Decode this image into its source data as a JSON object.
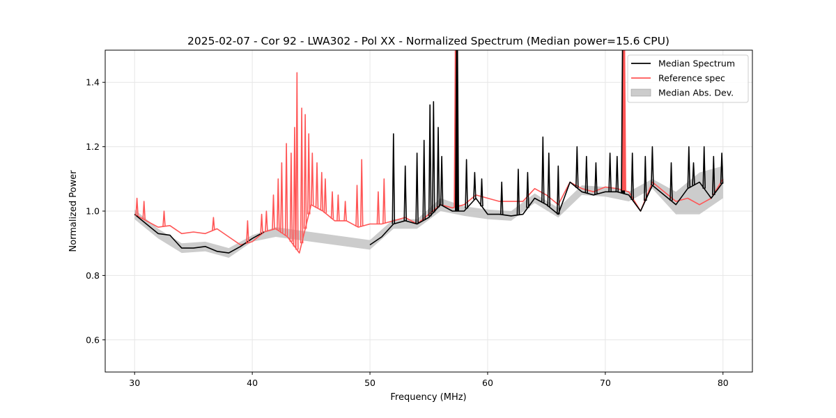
{
  "chart_data": {
    "type": "line",
    "title": "2025-02-07 - Cor 92 - LWA302 - Pol XX - Normalized Spectrum (Median power=15.6 CPU)",
    "xlabel": "Frequency (MHz)",
    "ylabel": "Normalized Power",
    "xlim": [
      27.5,
      82.5
    ],
    "ylim": [
      0.5,
      1.5
    ],
    "xticks": [
      30,
      40,
      50,
      60,
      70,
      80
    ],
    "yticks": [
      0.6,
      0.8,
      1.0,
      1.2,
      1.4
    ],
    "xtick_labels": [
      "30",
      "40",
      "50",
      "60",
      "70",
      "80"
    ],
    "ytick_labels": [
      "0.6",
      "0.8",
      "1.0",
      "1.2",
      "1.4"
    ],
    "grid": true,
    "legend_position": "top-right",
    "legend": [
      {
        "label": "Median Spectrum",
        "color": "#000000",
        "kind": "line"
      },
      {
        "label": "Reference spec",
        "color": "#ff5555",
        "kind": "line"
      },
      {
        "label": "Median Abs. Dev.",
        "color": "#bbbbbb",
        "kind": "band"
      }
    ],
    "series": [
      {
        "name": "Median Spectrum",
        "color": "#000000",
        "x": [
          30,
          31,
          32,
          33,
          34,
          35,
          36,
          37,
          38,
          39,
          40,
          41,
          42,
          43,
          44,
          45,
          46,
          47,
          48,
          49,
          50,
          51,
          52,
          53,
          54,
          55,
          56,
          57,
          58,
          59,
          60,
          61,
          62,
          63,
          64,
          65,
          66,
          67,
          68,
          69,
          70,
          71,
          72,
          73,
          74,
          75,
          76,
          77,
          78,
          79,
          80
        ],
        "y": [
          0.99,
          0.96,
          0.93,
          0.925,
          0.885,
          0.885,
          0.89,
          0.875,
          0.87,
          0.89,
          0.915,
          0.935,
          null,
          null,
          null,
          null,
          null,
          null,
          null,
          null,
          0.895,
          0.92,
          0.96,
          0.97,
          0.96,
          0.98,
          1.02,
          1.0,
          1.0,
          1.04,
          0.99,
          0.99,
          0.985,
          0.99,
          1.04,
          1.02,
          0.99,
          1.09,
          1.06,
          1.05,
          1.06,
          1.06,
          1.05,
          1.0,
          1.08,
          1.05,
          1.02,
          1.07,
          1.09,
          1.04,
          1.09
        ]
      },
      {
        "name": "Reference spec",
        "color": "#ff5555",
        "x": [
          30,
          31,
          32,
          33,
          34,
          35,
          36,
          37,
          38,
          39,
          40,
          41,
          42,
          43,
          44,
          45,
          46,
          47,
          48,
          49,
          50,
          51,
          52,
          53,
          54,
          55,
          56,
          57,
          58,
          59,
          60,
          61,
          62,
          63,
          64,
          65,
          66,
          67,
          68,
          69,
          70,
          71,
          72,
          73,
          74,
          75,
          76,
          77,
          78,
          79,
          80
        ],
        "y": [
          0.99,
          0.97,
          0.95,
          0.955,
          0.93,
          0.935,
          0.93,
          0.945,
          0.92,
          0.895,
          0.905,
          0.935,
          0.945,
          0.92,
          0.87,
          1.02,
          1.0,
          0.97,
          0.97,
          0.95,
          0.96,
          0.96,
          0.97,
          0.98,
          0.96,
          0.99,
          1.02,
          1.01,
          1.02,
          1.05,
          1.04,
          1.03,
          1.03,
          1.03,
          1.07,
          1.05,
          1.02,
          1.09,
          1.07,
          1.06,
          1.075,
          1.07,
          1.06,
          1.0,
          1.09,
          1.06,
          1.03,
          1.04,
          1.02,
          1.04,
          1.1
        ]
      }
    ],
    "mad_band": {
      "name": "Median Abs. Dev.",
      "x": [
        30,
        32,
        34,
        36,
        38,
        40,
        42,
        50,
        52,
        54,
        56,
        58,
        60,
        62,
        64,
        66,
        68,
        70,
        72,
        74,
        76,
        78,
        80
      ],
      "lower": [
        0.975,
        0.915,
        0.87,
        0.875,
        0.855,
        0.905,
        0.92,
        0.88,
        0.945,
        0.945,
        1.0,
        0.985,
        0.975,
        0.97,
        1.025,
        0.98,
        1.05,
        1.045,
        1.03,
        1.07,
        0.99,
        0.99,
        1.04
      ],
      "upper": [
        1.005,
        0.945,
        0.9,
        0.905,
        0.885,
        0.925,
        0.95,
        0.91,
        0.975,
        0.975,
        1.04,
        1.015,
        1.005,
        1.0,
        1.055,
        1.01,
        1.08,
        1.075,
        1.06,
        1.1,
        1.06,
        1.12,
        1.14
      ]
    },
    "spikes": [
      {
        "series": "Reference spec",
        "x": 30.2,
        "y": 1.04
      },
      {
        "series": "Reference spec",
        "x": 30.8,
        "y": 1.03
      },
      {
        "series": "Reference spec",
        "x": 32.5,
        "y": 1.0
      },
      {
        "series": "Reference spec",
        "x": 36.7,
        "y": 0.98
      },
      {
        "series": "Reference spec",
        "x": 39.6,
        "y": 0.97
      },
      {
        "series": "Reference spec",
        "x": 40.8,
        "y": 0.99
      },
      {
        "series": "Reference spec",
        "x": 41.2,
        "y": 1.0
      },
      {
        "series": "Reference spec",
        "x": 41.8,
        "y": 1.05
      },
      {
        "series": "Reference spec",
        "x": 42.2,
        "y": 1.1
      },
      {
        "series": "Reference spec",
        "x": 42.5,
        "y": 1.15
      },
      {
        "series": "Reference spec",
        "x": 42.9,
        "y": 1.21
      },
      {
        "series": "Reference spec",
        "x": 43.3,
        "y": 1.18
      },
      {
        "series": "Reference spec",
        "x": 43.6,
        "y": 1.26
      },
      {
        "series": "Reference spec",
        "x": 43.8,
        "y": 1.43
      },
      {
        "series": "Reference spec",
        "x": 44.2,
        "y": 1.32
      },
      {
        "series": "Reference spec",
        "x": 44.5,
        "y": 1.3
      },
      {
        "series": "Reference spec",
        "x": 44.8,
        "y": 1.24
      },
      {
        "series": "Reference spec",
        "x": 45.1,
        "y": 1.18
      },
      {
        "series": "Reference spec",
        "x": 45.5,
        "y": 1.15
      },
      {
        "series": "Reference spec",
        "x": 45.9,
        "y": 1.12
      },
      {
        "series": "Reference spec",
        "x": 46.2,
        "y": 1.1
      },
      {
        "series": "Reference spec",
        "x": 46.8,
        "y": 1.06
      },
      {
        "series": "Reference spec",
        "x": 47.3,
        "y": 1.05
      },
      {
        "series": "Reference spec",
        "x": 47.9,
        "y": 1.03
      },
      {
        "series": "Reference spec",
        "x": 48.9,
        "y": 1.08
      },
      {
        "series": "Reference spec",
        "x": 49.3,
        "y": 1.16
      },
      {
        "series": "Reference spec",
        "x": 50.7,
        "y": 1.06
      },
      {
        "series": "Reference spec",
        "x": 51.2,
        "y": 1.1
      },
      {
        "series": "Median Spectrum",
        "x": 52.0,
        "y": 1.24
      },
      {
        "series": "Median Spectrum",
        "x": 53.0,
        "y": 1.14
      },
      {
        "series": "Median Spectrum",
        "x": 54.0,
        "y": 1.18
      },
      {
        "series": "Median Spectrum",
        "x": 54.6,
        "y": 1.22
      },
      {
        "series": "Median Spectrum",
        "x": 55.1,
        "y": 1.33
      },
      {
        "series": "Median Spectrum",
        "x": 55.4,
        "y": 1.34
      },
      {
        "series": "Median Spectrum",
        "x": 55.8,
        "y": 1.26
      },
      {
        "series": "Median Spectrum",
        "x": 56.1,
        "y": 1.17
      },
      {
        "series": "Reference spec",
        "x": 57.3,
        "y": 1.5
      },
      {
        "series": "Median Spectrum",
        "x": 57.4,
        "y": 1.5
      },
      {
        "series": "Median Spectrum",
        "x": 58.2,
        "y": 1.16
      },
      {
        "series": "Median Spectrum",
        "x": 58.9,
        "y": 1.12
      },
      {
        "series": "Median Spectrum",
        "x": 59.5,
        "y": 1.1
      },
      {
        "series": "Median Spectrum",
        "x": 61.2,
        "y": 1.09
      },
      {
        "series": "Median Spectrum",
        "x": 62.6,
        "y": 1.13
      },
      {
        "series": "Median Spectrum",
        "x": 63.4,
        "y": 1.12
      },
      {
        "series": "Median Spectrum",
        "x": 64.7,
        "y": 1.23
      },
      {
        "series": "Median Spectrum",
        "x": 65.2,
        "y": 1.18
      },
      {
        "series": "Median Spectrum",
        "x": 66.0,
        "y": 1.14
      },
      {
        "series": "Median Spectrum",
        "x": 67.6,
        "y": 1.2
      },
      {
        "series": "Median Spectrum",
        "x": 68.4,
        "y": 1.17
      },
      {
        "series": "Median Spectrum",
        "x": 69.2,
        "y": 1.15
      },
      {
        "series": "Median Spectrum",
        "x": 70.4,
        "y": 1.18
      },
      {
        "series": "Median Spectrum",
        "x": 71.0,
        "y": 1.17
      },
      {
        "series": "Median Spectrum",
        "x": 71.5,
        "y": 1.5
      },
      {
        "series": "Reference spec",
        "x": 71.6,
        "y": 1.5
      },
      {
        "series": "Median Spectrum",
        "x": 72.3,
        "y": 1.18
      },
      {
        "series": "Median Spectrum",
        "x": 73.4,
        "y": 1.17
      },
      {
        "series": "Median Spectrum",
        "x": 74.0,
        "y": 1.2
      },
      {
        "series": "Median Spectrum",
        "x": 75.6,
        "y": 1.15
      },
      {
        "series": "Median Spectrum",
        "x": 77.1,
        "y": 1.2
      },
      {
        "series": "Median Spectrum",
        "x": 77.5,
        "y": 1.15
      },
      {
        "series": "Median Spectrum",
        "x": 78.4,
        "y": 1.2
      },
      {
        "series": "Median Spectrum",
        "x": 79.2,
        "y": 1.17
      },
      {
        "series": "Median Spectrum",
        "x": 79.9,
        "y": 1.18
      }
    ]
  }
}
